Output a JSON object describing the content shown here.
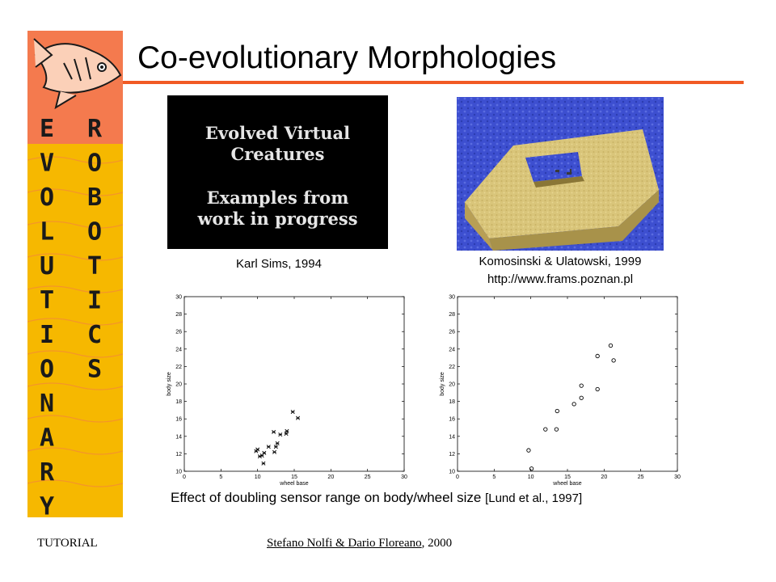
{
  "slide": {
    "title": "Co-evolutionary Morphologies",
    "logo": {
      "left_column": [
        "E",
        "V",
        "O",
        "L",
        "U",
        "T",
        "I",
        "O",
        "N",
        "A",
        "R",
        "Y"
      ],
      "right_column": [
        "R",
        "O",
        "B",
        "O",
        "T",
        "I",
        "C",
        "S"
      ],
      "icon": "fish-icon",
      "colors": {
        "orange": "#f47a4e",
        "yellow": "#f6b800",
        "letters": "#1a1a1a"
      }
    },
    "video": {
      "line1": "Evolved Virtual",
      "line2": "Creatures",
      "line3": "Examples from",
      "line4": "work in progress"
    },
    "caption_sims": "Karl Sims, 1994",
    "caption_komo_line1": "Komosinski & Ulatowski, 1999",
    "caption_komo_line2": "http://www.frams.poznan.pl",
    "effect_caption": "Effect of doubling sensor range on body/wheel size ",
    "effect_ref": "[Lund et al., 1997]",
    "footer_left": "TUTORIAL",
    "footer_authors": "Stefano Nolfi & Dario Floreano",
    "footer_year": ", 2000",
    "accent_color": "#f15a24"
  },
  "chart_data": [
    {
      "type": "scatter",
      "marker": "x",
      "xlabel": "wheel base",
      "ylabel": "body size",
      "xlim": [
        0,
        30
      ],
      "ylim": [
        10,
        30
      ],
      "xticks": [
        0,
        5,
        10,
        15,
        20,
        25,
        30
      ],
      "yticks": [
        10,
        12,
        14,
        16,
        18,
        20,
        22,
        24,
        26,
        28,
        30
      ],
      "grid": false,
      "points": [
        [
          9.8,
          12.3
        ],
        [
          10.0,
          12.5
        ],
        [
          10.3,
          11.7
        ],
        [
          10.6,
          11.8
        ],
        [
          10.8,
          10.9
        ],
        [
          10.9,
          12.1
        ],
        [
          11.5,
          12.8
        ],
        [
          12.2,
          14.5
        ],
        [
          12.3,
          12.2
        ],
        [
          12.7,
          13.2
        ],
        [
          13.1,
          14.2
        ],
        [
          13.9,
          14.3
        ],
        [
          14.0,
          14.6
        ],
        [
          14.8,
          16.8
        ],
        [
          15.5,
          16.1
        ],
        [
          12.5,
          12.8
        ]
      ]
    },
    {
      "type": "scatter",
      "marker": "o",
      "xlabel": "wheel base",
      "ylabel": "body size",
      "xlim": [
        0,
        30
      ],
      "ylim": [
        10,
        30
      ],
      "xticks": [
        0,
        5,
        10,
        15,
        20,
        25,
        30
      ],
      "yticks": [
        10,
        12,
        14,
        16,
        18,
        20,
        22,
        24,
        26,
        28,
        30
      ],
      "grid": false,
      "points": [
        [
          9.7,
          12.4
        ],
        [
          10.1,
          10.3
        ],
        [
          12.0,
          14.8
        ],
        [
          13.5,
          14.8
        ],
        [
          13.6,
          16.9
        ],
        [
          15.9,
          17.7
        ],
        [
          16.9,
          18.4
        ],
        [
          16.9,
          19.8
        ],
        [
          19.1,
          19.4
        ],
        [
          19.1,
          23.2
        ],
        [
          20.9,
          24.4
        ],
        [
          21.3,
          22.7
        ]
      ]
    }
  ]
}
